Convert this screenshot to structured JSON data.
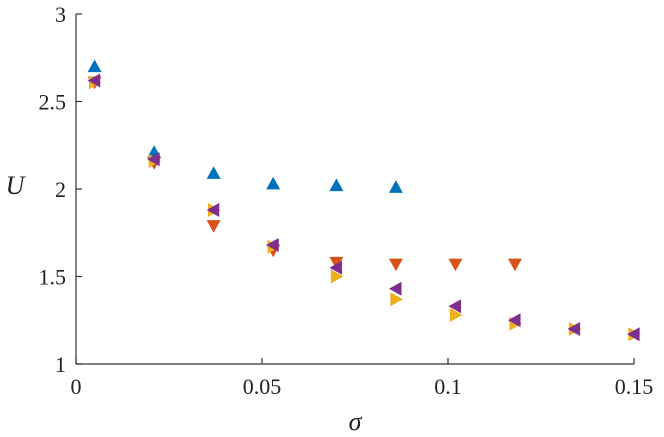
{
  "chart_data": {
    "type": "scatter",
    "title": "",
    "xlabel": "σ",
    "ylabel": "U",
    "xlim": [
      0,
      0.15
    ],
    "ylim": [
      1,
      3
    ],
    "xticks": [
      0,
      0.05,
      0.1,
      0.15
    ],
    "xtick_labels": [
      "0",
      "0.05",
      "0.1",
      "0.15"
    ],
    "yticks": [
      1,
      1.5,
      2,
      2.5,
      3
    ],
    "ytick_labels": [
      "1",
      "1.5",
      "2",
      "2.5",
      "3"
    ],
    "grid": false,
    "legend": "none",
    "series": [
      {
        "marker": "triangle-up",
        "color": "#0072BD",
        "x": [
          0.005,
          0.021,
          0.037,
          0.053,
          0.07,
          0.086
        ],
        "y": [
          2.7,
          2.21,
          2.09,
          2.03,
          2.02,
          2.01
        ]
      },
      {
        "marker": "triangle-down",
        "color": "#D95319",
        "x": [
          0.005,
          0.021,
          0.037,
          0.053,
          0.07,
          0.086,
          0.102,
          0.118
        ],
        "y": [
          2.61,
          2.15,
          1.79,
          1.65,
          1.58,
          1.57,
          1.57,
          1.57
        ]
      },
      {
        "marker": "triangle-right",
        "color": "#EDB120",
        "x": [
          0.005,
          0.021,
          0.037,
          0.053,
          0.07,
          0.086,
          0.102,
          0.118,
          0.134,
          0.15
        ],
        "y": [
          2.61,
          2.16,
          1.88,
          1.67,
          1.5,
          1.37,
          1.28,
          1.23,
          1.2,
          1.17
        ]
      },
      {
        "marker": "triangle-left",
        "color": "#7E2F8E",
        "x": [
          0.005,
          0.021,
          0.037,
          0.053,
          0.07,
          0.086,
          0.102,
          0.118,
          0.134,
          0.15
        ],
        "y": [
          2.62,
          2.17,
          1.88,
          1.68,
          1.55,
          1.43,
          1.33,
          1.25,
          1.2,
          1.17
        ]
      }
    ]
  }
}
